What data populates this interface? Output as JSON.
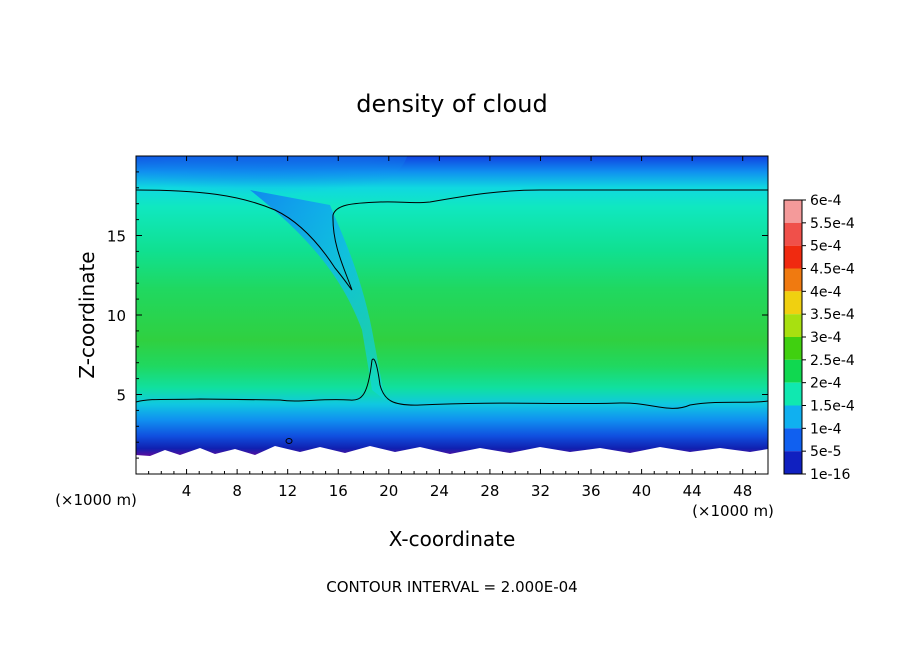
{
  "chart_data": {
    "type": "heatmap",
    "title": "density of cloud",
    "xlabel": "X-coordinate",
    "ylabel": "Z-coordinate",
    "x_unit": "(×1000 m)",
    "x_unit_right": "(×1000 m)",
    "xlim": [
      0,
      50
    ],
    "ylim": [
      0,
      20
    ],
    "x_ticks": [
      4,
      8,
      12,
      16,
      20,
      24,
      28,
      32,
      36,
      40,
      44,
      48
    ],
    "y_ticks": [
      5,
      10,
      15
    ],
    "footer": "CONTOUR INTERVAL = 2.000E-04",
    "legend_position": "right",
    "colorbar": [
      {
        "label": "6e-4",
        "value": 0.0006,
        "color": "#f49a9a"
      },
      {
        "label": "5.5e-4",
        "value": 0.00055,
        "color": "#f0504a"
      },
      {
        "label": "5e-4",
        "value": 0.0005,
        "color": "#f02a10"
      },
      {
        "label": "4.5e-4",
        "value": 0.00045,
        "color": "#f07a10"
      },
      {
        "label": "4e-4",
        "value": 0.0004,
        "color": "#f0d010"
      },
      {
        "label": "3.5e-4",
        "value": 0.00035,
        "color": "#a8e010"
      },
      {
        "label": "3e-4",
        "value": 0.0003,
        "color": "#40d010"
      },
      {
        "label": "2.5e-4",
        "value": 0.00025,
        "color": "#10d850"
      },
      {
        "label": "2e-4",
        "value": 0.0002,
        "color": "#10e8b0"
      },
      {
        "label": "1.5e-4",
        "value": 0.00015,
        "color": "#10b0f0"
      },
      {
        "label": "1e-4",
        "value": 0.0001,
        "color": "#1060f0"
      },
      {
        "label": "5e-5",
        "value": 5e-05,
        "color": "#1020c0"
      },
      {
        "label": "1e-16",
        "value": 1e-16,
        "color": "#7010a0"
      }
    ]
  }
}
